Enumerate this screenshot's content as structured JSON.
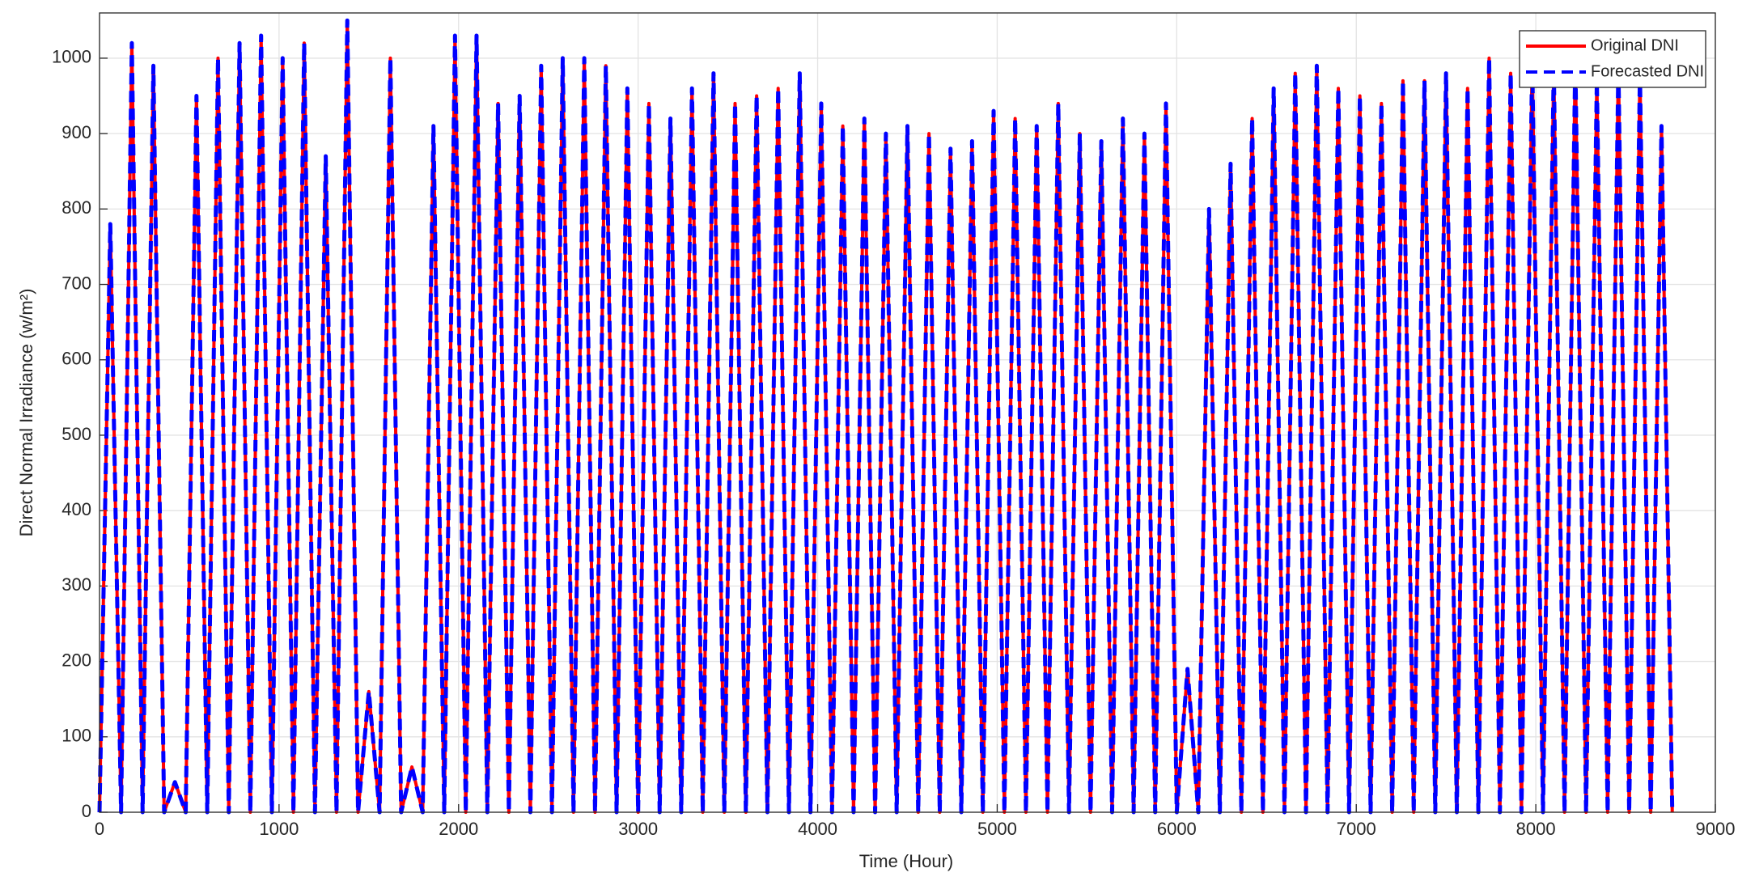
{
  "chart_data": {
    "type": "line",
    "x_label": "Time (Hour)",
    "y_label": "Direct Normal Irradiance (w/m²)",
    "x": [
      0,
      60,
      120,
      180,
      240,
      300,
      360,
      420,
      480,
      540,
      600,
      660,
      720,
      780,
      840,
      900,
      960,
      1020,
      1080,
      1140,
      1200,
      1260,
      1320,
      1380,
      1440,
      1500,
      1560,
      1620,
      1680,
      1740,
      1800,
      1860,
      1920,
      1980,
      2040,
      2100,
      2160,
      2220,
      2280,
      2340,
      2400,
      2460,
      2520,
      2580,
      2640,
      2700,
      2760,
      2820,
      2880,
      2940,
      3000,
      3060,
      3120,
      3180,
      3240,
      3300,
      3360,
      3420,
      3480,
      3540,
      3600,
      3660,
      3720,
      3780,
      3840,
      3900,
      3960,
      4020,
      4080,
      4140,
      4200,
      4260,
      4320,
      4380,
      4440,
      4500,
      4560,
      4620,
      4680,
      4740,
      4800,
      4860,
      4920,
      4980,
      5040,
      5100,
      5160,
      5220,
      5280,
      5340,
      5400,
      5460,
      5520,
      5580,
      5640,
      5700,
      5760,
      5820,
      5880,
      5940,
      6000,
      6060,
      6120,
      6180,
      6240,
      6300,
      6360,
      6420,
      6480,
      6540,
      6600,
      6660,
      6720,
      6780,
      6840,
      6900,
      6960,
      7020,
      7080,
      7140,
      7200,
      7260,
      7320,
      7380,
      7440,
      7500,
      7560,
      7620,
      7680,
      7740,
      7800,
      7860,
      7920,
      7980,
      8040,
      8100,
      8160,
      8220,
      8280,
      8340,
      8400,
      8460,
      8520,
      8580,
      8640,
      8700,
      8760
    ],
    "series": [
      {
        "name": "Original DNI",
        "color": "#ff0000",
        "dash": false,
        "values": [
          0,
          780,
          0,
          1020,
          0,
          990,
          0,
          40,
          0,
          950,
          0,
          1000,
          0,
          1020,
          0,
          1030,
          0,
          1000,
          0,
          1020,
          0,
          870,
          0,
          1050,
          0,
          160,
          0,
          1000,
          0,
          60,
          0,
          910,
          0,
          1030,
          0,
          1030,
          0,
          940,
          0,
          950,
          0,
          990,
          0,
          1000,
          0,
          1000,
          0,
          990,
          0,
          960,
          0,
          940,
          0,
          920,
          0,
          960,
          0,
          980,
          0,
          940,
          0,
          950,
          0,
          960,
          0,
          980,
          0,
          940,
          0,
          910,
          0,
          920,
          0,
          900,
          0,
          910,
          0,
          900,
          0,
          880,
          0,
          890,
          0,
          930,
          0,
          920,
          0,
          910,
          0,
          940,
          0,
          900,
          0,
          890,
          0,
          920,
          0,
          900,
          0,
          940,
          0,
          190,
          0,
          800,
          0,
          860,
          0,
          920,
          0,
          960,
          0,
          980,
          0,
          990,
          0,
          960,
          0,
          950,
          0,
          940,
          0,
          970,
          0,
          970,
          0,
          980,
          0,
          960,
          0,
          1000,
          0,
          980,
          0,
          1000,
          0,
          990,
          0,
          1000,
          0,
          970,
          0,
          990,
          0,
          980,
          0,
          910,
          0
        ]
      },
      {
        "name": "Forecasted DNI",
        "color": "#0000ff",
        "dash": true,
        "values": [
          0,
          780,
          0,
          1020,
          0,
          990,
          0,
          40,
          0,
          950,
          0,
          1000,
          0,
          1020,
          0,
          1030,
          0,
          1000,
          0,
          1020,
          0,
          870,
          0,
          1050,
          0,
          160,
          0,
          1000,
          0,
          60,
          0,
          910,
          0,
          1030,
          0,
          1030,
          0,
          940,
          0,
          950,
          0,
          990,
          0,
          1000,
          0,
          1000,
          0,
          990,
          0,
          960,
          0,
          940,
          0,
          920,
          0,
          960,
          0,
          980,
          0,
          940,
          0,
          950,
          0,
          960,
          0,
          980,
          0,
          940,
          0,
          910,
          0,
          920,
          0,
          900,
          0,
          910,
          0,
          900,
          0,
          880,
          0,
          890,
          0,
          930,
          0,
          920,
          0,
          910,
          0,
          940,
          0,
          900,
          0,
          890,
          0,
          920,
          0,
          900,
          0,
          940,
          0,
          190,
          0,
          800,
          0,
          860,
          0,
          920,
          0,
          960,
          0,
          980,
          0,
          990,
          0,
          960,
          0,
          950,
          0,
          940,
          0,
          970,
          0,
          970,
          0,
          980,
          0,
          960,
          0,
          1000,
          0,
          980,
          0,
          1000,
          0,
          990,
          0,
          1000,
          0,
          970,
          0,
          990,
          0,
          980,
          0,
          910,
          0
        ]
      }
    ],
    "xlim": [
      0,
      9000
    ],
    "xticks": [
      0,
      1000,
      2000,
      3000,
      4000,
      5000,
      6000,
      7000,
      8000,
      9000
    ],
    "ylim": [
      0,
      1060
    ],
    "yticks": [
      0,
      100,
      200,
      300,
      400,
      500,
      600,
      700,
      800,
      900,
      1000
    ],
    "grid": true,
    "legend": "upper-right"
  }
}
